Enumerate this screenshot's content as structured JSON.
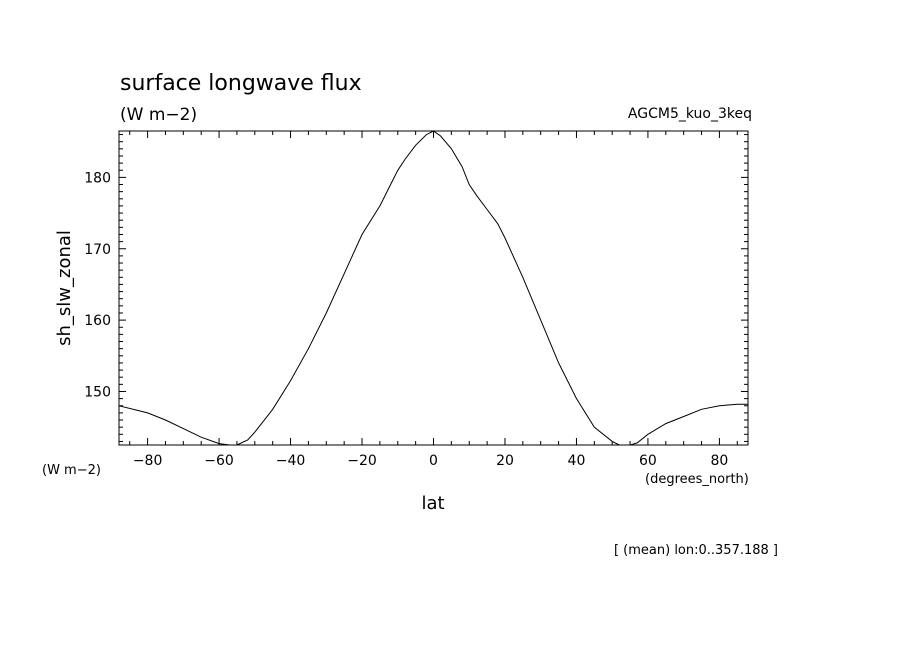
{
  "chart_data": {
    "type": "line",
    "title": "surface longwave flux",
    "subtitle": "(W m−2)",
    "model": "AGCM5_kuo_3keq",
    "xlabel": "lat",
    "x_units": "(degrees_north)",
    "ylabel": "sh_slw_zonal",
    "y_units": "(W m−2)",
    "footnote": "[ (mean) lon:0..357.188 ]",
    "xlim": [
      -88,
      88
    ],
    "ylim": [
      142.5,
      186.5
    ],
    "x_ticks": [
      -80,
      -60,
      -40,
      -20,
      0,
      20,
      40,
      60,
      80
    ],
    "x_tick_labels": [
      "−80",
      "−60",
      "−40",
      "−20",
      "0",
      "20",
      "40",
      "60",
      "80"
    ],
    "y_ticks": [
      150,
      160,
      170,
      180
    ],
    "y_tick_labels": [
      "150",
      "160",
      "170",
      "180"
    ],
    "grid": false,
    "series": [
      {
        "x": [
          -88,
          -80,
          -75,
          -70,
          -65,
          -60,
          -57,
          -55,
          -52,
          -50,
          -45,
          -40,
          -35,
          -30,
          -25,
          -20,
          -15,
          -12,
          -10,
          -8,
          -5,
          -2,
          0,
          2,
          5,
          8,
          10,
          12,
          15,
          18,
          20,
          25,
          30,
          35,
          40,
          45,
          50,
          52,
          55,
          57,
          60,
          65,
          70,
          75,
          80,
          85,
          88
        ],
        "y": [
          148.0,
          147.0,
          146.0,
          144.8,
          143.6,
          142.7,
          142.5,
          142.5,
          143.2,
          144.3,
          147.5,
          151.5,
          156.0,
          161.0,
          166.5,
          172.0,
          176.0,
          179.0,
          181.0,
          182.5,
          184.5,
          186.0,
          186.5,
          185.8,
          184.0,
          181.5,
          179.0,
          177.5,
          175.5,
          173.5,
          171.5,
          166.0,
          160.0,
          154.0,
          149.0,
          145.0,
          143.0,
          142.5,
          142.5,
          142.8,
          144.0,
          145.5,
          146.5,
          147.5,
          148.0,
          148.2,
          148.2
        ]
      }
    ]
  }
}
